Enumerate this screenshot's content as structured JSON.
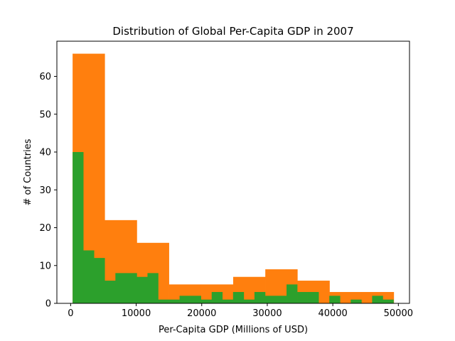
{
  "chart_data": {
    "type": "histogram",
    "title": "Distribution of Global Per-Capita GDP in 2007",
    "xlabel": "Per-Capita GDP (Millions of USD)",
    "ylabel": "# of Countries",
    "xlim": [
      -2100,
      51700
    ],
    "ylim": [
      0,
      69.3
    ],
    "xticks": [
      0,
      10000,
      20000,
      30000,
      40000,
      50000
    ],
    "yticks": [
      0,
      10,
      20,
      30,
      40,
      50,
      60
    ],
    "xtick_labels": [
      "0",
      "10000",
      "20000",
      "30000",
      "40000",
      "50000"
    ],
    "ytick_labels": [
      "0",
      "10",
      "20",
      "30",
      "40",
      "50",
      "60"
    ],
    "grid": false,
    "legend": "none",
    "series": [
      {
        "color": "#ff7f0e",
        "bin_edges": [
          300,
          5200,
          10100,
          15000,
          19900,
          24800,
          29700,
          34600,
          39500,
          44400,
          49300
        ],
        "counts": [
          66,
          22,
          16,
          5,
          5,
          7,
          9,
          6,
          3,
          3
        ]
      },
      {
        "color": "#2ca02c",
        "bin_edges": [
          300,
          1932,
          3564,
          5196,
          6828,
          8460,
          10092,
          11724,
          13356,
          14988,
          16620,
          18252,
          19884,
          21516,
          23148,
          24780,
          26412,
          28044,
          29676,
          31308,
          32940,
          34572,
          36204,
          37836,
          39468,
          41100,
          42732,
          44364,
          45996,
          47628,
          49260
        ],
        "counts": [
          40,
          14,
          12,
          6,
          8,
          8,
          7,
          8,
          1,
          1,
          2,
          2,
          1,
          3,
          1,
          3,
          1,
          3,
          2,
          2,
          5,
          3,
          3,
          0,
          2,
          0,
          1,
          0,
          2,
          1
        ]
      }
    ]
  }
}
